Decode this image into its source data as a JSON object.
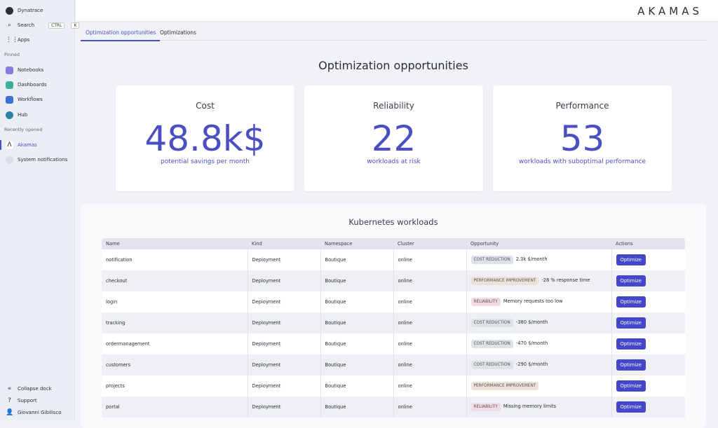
{
  "sidebar": {
    "dynatrace": "Dynatrace",
    "search": "Search",
    "kbd1": "CTRL",
    "kbd2": "K",
    "apps": "Apps",
    "pinned": "Pinned",
    "pinned_items": [
      "Notebooks",
      "Dashboards",
      "Workflows",
      "Hub"
    ],
    "recent": "Recently opened",
    "recent_items": [
      "Akamas",
      "System notifications"
    ],
    "collapse": "Collapse dock",
    "support": "Support",
    "user": "Giovanni Gibilisco"
  },
  "logo": "AKAMAS",
  "tabs": [
    "Optimization opportunities",
    "Optimizations"
  ],
  "title": "Optimization opportunities",
  "cards": [
    {
      "title": "Cost",
      "value": "48.8k$",
      "sub": "potential savings per month"
    },
    {
      "title": "Reliability",
      "value": "22",
      "sub": "workloads at risk"
    },
    {
      "title": "Performance",
      "value": "53",
      "sub": "workloads with suboptimal performance"
    }
  ],
  "table": {
    "title": "Kubernetes workloads",
    "headers": [
      "Name",
      "Kind",
      "Namespace",
      "Cluster",
      "Opportunity",
      "Actions"
    ],
    "rows": [
      {
        "name": "notification",
        "kind": "Deployment",
        "ns": "Boutique",
        "cluster": "online",
        "badge": "COST REDUCTION",
        "type": "cost",
        "detail": "2.3k $/month",
        "action": "Optimize"
      },
      {
        "name": "checkout",
        "kind": "Deployment",
        "ns": "Boutique",
        "cluster": "online",
        "badge": "PERFORMANCE IMPROVEMENT",
        "type": "perf",
        "detail": "-28 % response time",
        "action": "Optimize"
      },
      {
        "name": "login",
        "kind": "Deployment",
        "ns": "Boutique",
        "cluster": "online",
        "badge": "RELIABILITY",
        "type": "rel",
        "detail": "Memory requests too low",
        "action": "Optimize"
      },
      {
        "name": "tracking",
        "kind": "Deployment",
        "ns": "Boutique",
        "cluster": "online",
        "badge": "COST REDUCTION",
        "type": "cost",
        "detail": "-380 $/month",
        "action": "Optimize"
      },
      {
        "name": "ordermanagement",
        "kind": "Deployment",
        "ns": "Boutique",
        "cluster": "online",
        "badge": "COST REDUCTION",
        "type": "cost",
        "detail": "-470 $/month",
        "action": "Optimize"
      },
      {
        "name": "customers",
        "kind": "Deployment",
        "ns": "Boutique",
        "cluster": "online",
        "badge": "COST REDUCTION",
        "type": "cost",
        "detail": "-290 $/month",
        "action": "Optimize"
      },
      {
        "name": "projects",
        "kind": "Deployment",
        "ns": "Boutique",
        "cluster": "online",
        "badge": "PERFORMANCE IMPROVEMENT",
        "type": "perf",
        "detail": "",
        "action": "Optimize"
      },
      {
        "name": "portal",
        "kind": "Deployment",
        "ns": "Boutique",
        "cluster": "online",
        "badge": "RELIABILITY",
        "type": "rel",
        "detail": "Missing memory limits",
        "action": "Optimize"
      }
    ]
  },
  "colors": {
    "accent": "#4b4fc4",
    "cost": "#dde2e8",
    "perf": "#eee2d8",
    "rel": "#f3dbe6"
  }
}
